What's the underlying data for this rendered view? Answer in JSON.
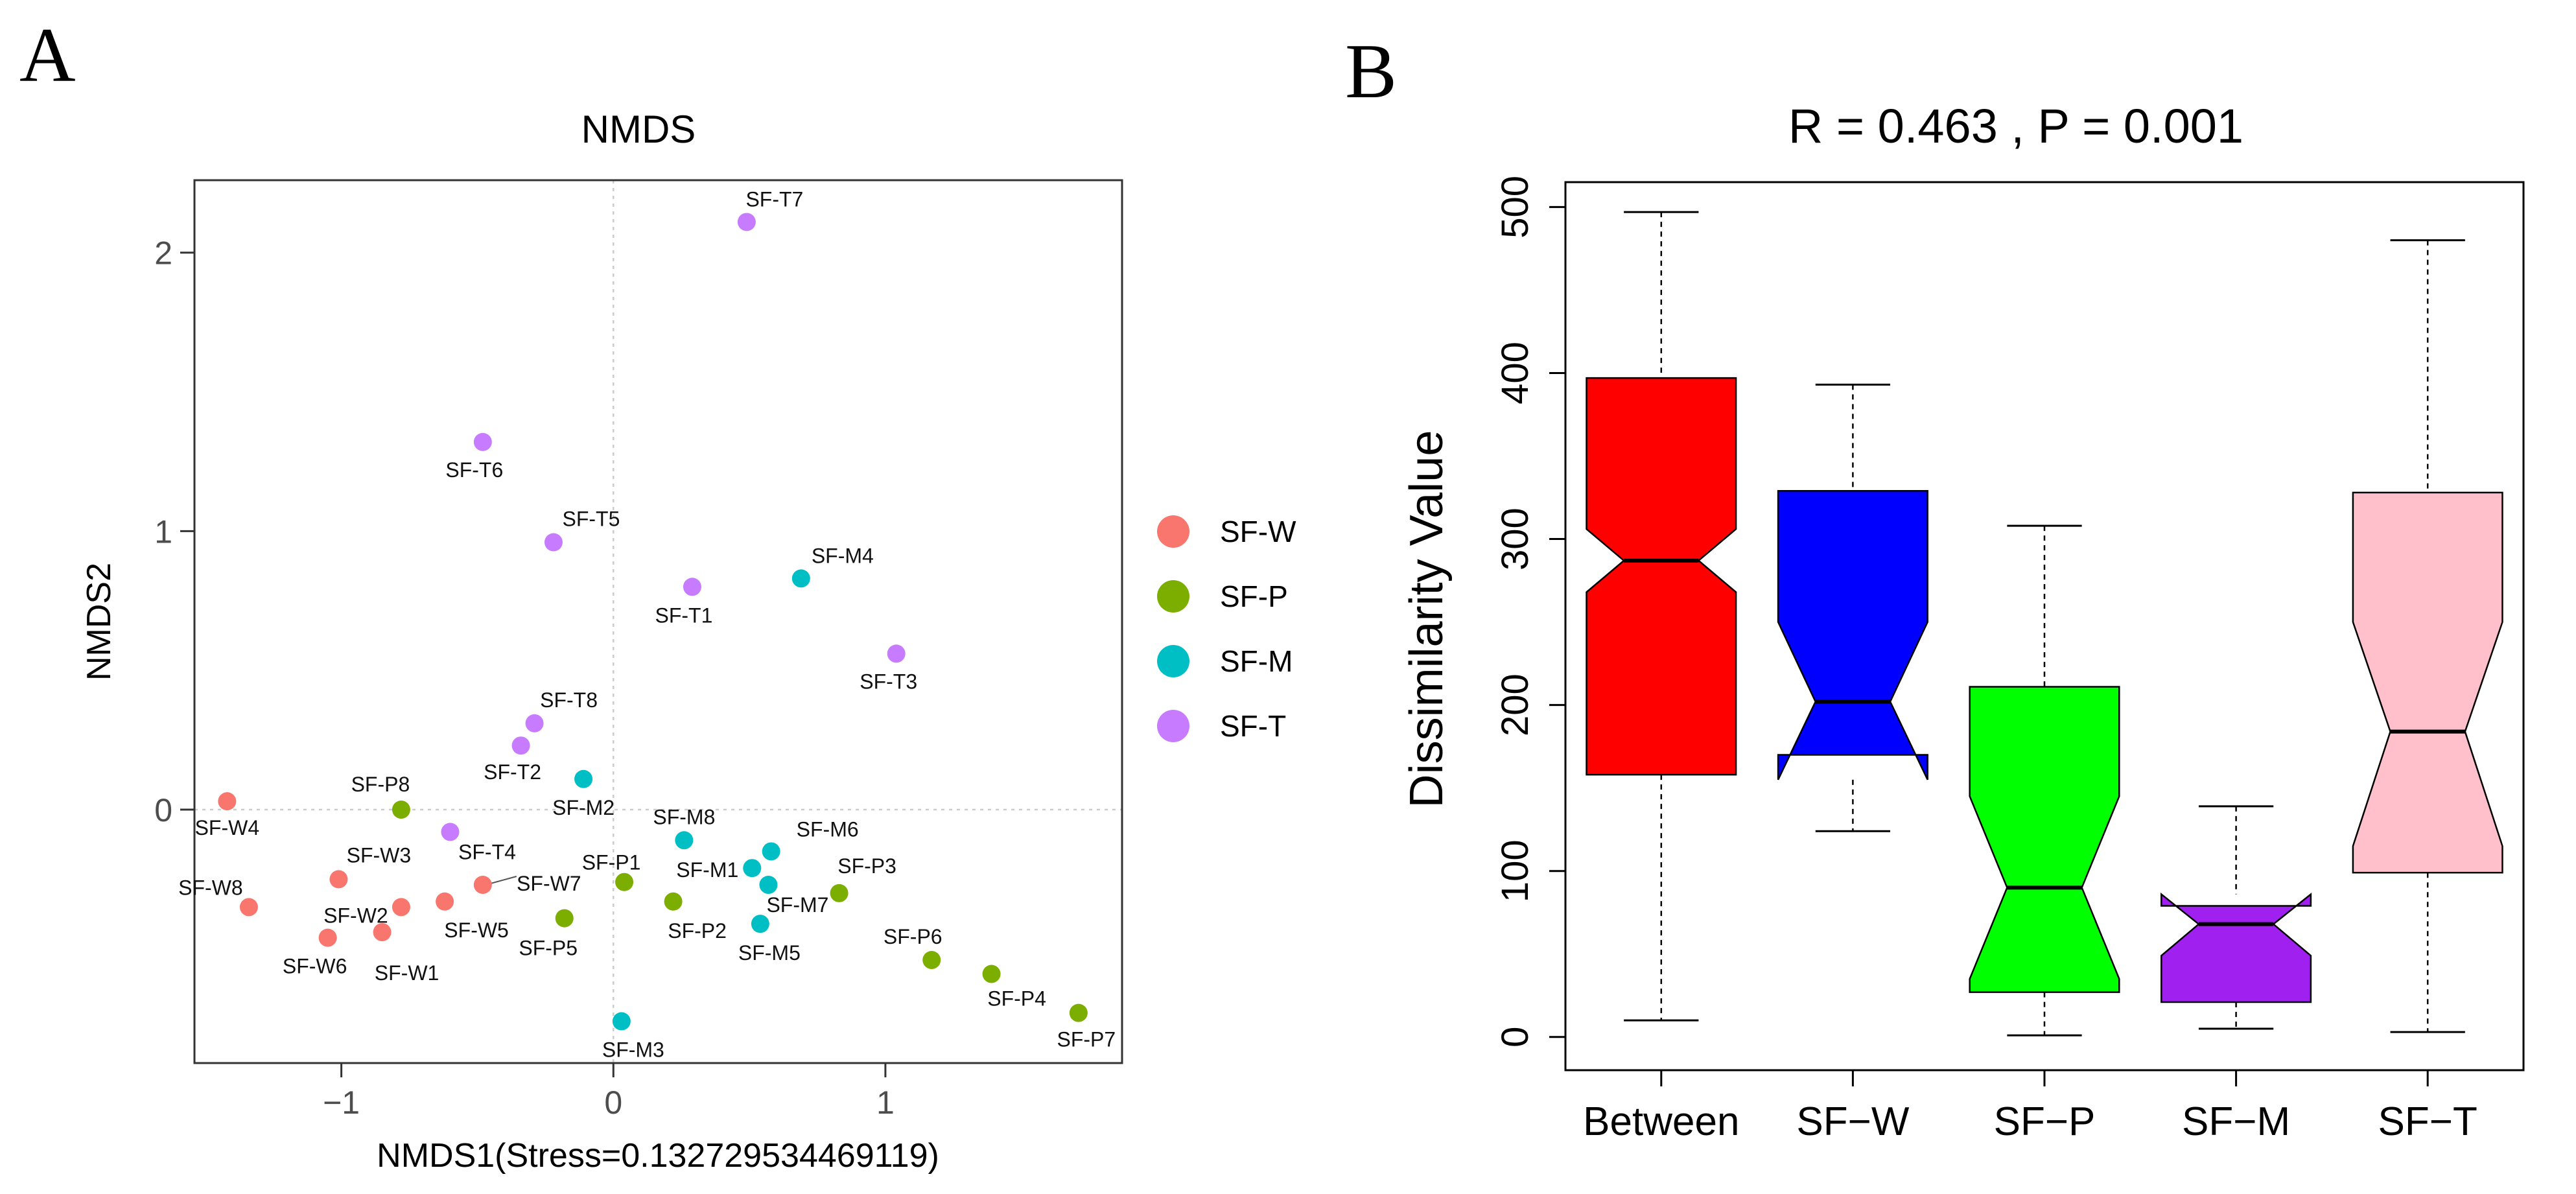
{
  "panels": {
    "a_label": "A",
    "b_label": "B"
  },
  "chart_data": [
    {
      "type": "scatter",
      "title": "NMDS",
      "xlabel": "NMDS1(Stress=0.132729534469119)",
      "ylabel": "NMDS2",
      "xlim": [
        -1.54,
        1.87
      ],
      "ylim": [
        -0.91,
        2.26
      ],
      "xticks": [
        -1,
        0,
        1
      ],
      "yticks": [
        0,
        1,
        2
      ],
      "xtick_labels": [
        "−1",
        "0",
        "1"
      ],
      "ytick_labels": [
        "0",
        "1",
        "2"
      ],
      "reference_lines": {
        "x": 0,
        "y": 0,
        "style": "dotted"
      },
      "legend": {
        "position": "right",
        "entries": [
          {
            "name": "SF-W",
            "color": "#F8766D"
          },
          {
            "name": "SF-P",
            "color": "#7CAE00"
          },
          {
            "name": "SF-M",
            "color": "#00BFC4"
          },
          {
            "name": "SF-T",
            "color": "#C77CFF"
          }
        ]
      },
      "groups": [
        {
          "name": "SF-W",
          "color": "#F8766D",
          "points": [
            {
              "label": "SF-W1",
              "x": -0.85,
              "y": -0.44
            },
            {
              "label": "SF-W2",
              "x": -0.78,
              "y": -0.35
            },
            {
              "label": "SF-W3",
              "x": -1.01,
              "y": -0.25
            },
            {
              "label": "SF-W4",
              "x": -1.42,
              "y": 0.03
            },
            {
              "label": "SF-W5",
              "x": -0.62,
              "y": -0.33
            },
            {
              "label": "SF-W6",
              "x": -1.05,
              "y": -0.46
            },
            {
              "label": "SF-W7",
              "x": -0.48,
              "y": -0.27
            },
            {
              "label": "SF-W8",
              "x": -1.34,
              "y": -0.35
            }
          ]
        },
        {
          "name": "SF-P",
          "color": "#7CAE00",
          "points": [
            {
              "label": "SF-P1",
              "x": 0.04,
              "y": -0.26
            },
            {
              "label": "SF-P2",
              "x": 0.22,
              "y": -0.33
            },
            {
              "label": "SF-P3",
              "x": 0.83,
              "y": -0.3
            },
            {
              "label": "SF-P4",
              "x": 1.39,
              "y": -0.59
            },
            {
              "label": "SF-P5",
              "x": -0.18,
              "y": -0.39
            },
            {
              "label": "SF-P6",
              "x": 1.17,
              "y": -0.54
            },
            {
              "label": "SF-P7",
              "x": 1.71,
              "y": -0.73
            },
            {
              "label": "SF-P8",
              "x": -0.78,
              "y": 0.0
            }
          ]
        },
        {
          "name": "SF-M",
          "color": "#00BFC4",
          "points": [
            {
              "label": "SF-M1",
              "x": 0.51,
              "y": -0.21
            },
            {
              "label": "SF-M2",
              "x": -0.11,
              "y": 0.11
            },
            {
              "label": "SF-M3",
              "x": 0.03,
              "y": -0.76
            },
            {
              "label": "SF-M4",
              "x": 0.69,
              "y": 0.83
            },
            {
              "label": "SF-M5",
              "x": 0.54,
              "y": -0.41
            },
            {
              "label": "SF-M6",
              "x": 0.58,
              "y": -0.15
            },
            {
              "label": "SF-M7",
              "x": 0.57,
              "y": -0.27
            },
            {
              "label": "SF-M8",
              "x": 0.26,
              "y": -0.11
            }
          ]
        },
        {
          "name": "SF-T",
          "color": "#C77CFF",
          "points": [
            {
              "label": "SF-T1",
              "x": 0.29,
              "y": 0.8
            },
            {
              "label": "SF-T2",
              "x": -0.34,
              "y": 0.23
            },
            {
              "label": "SF-T3",
              "x": 1.04,
              "y": 0.56
            },
            {
              "label": "SF-T4",
              "x": -0.6,
              "y": -0.08
            },
            {
              "label": "SF-T5",
              "x": -0.22,
              "y": 0.96
            },
            {
              "label": "SF-T6",
              "x": -0.48,
              "y": 1.32
            },
            {
              "label": "SF-T7",
              "x": 0.49,
              "y": 2.11
            },
            {
              "label": "SF-T8",
              "x": -0.29,
              "y": 0.31
            }
          ]
        }
      ]
    },
    {
      "type": "box",
      "title": "R =  0.463 ,  P =  0.001",
      "ylabel": "Dissimilarity Value",
      "ylim": [
        -20,
        515
      ],
      "yticks": [
        0,
        100,
        200,
        300,
        400,
        500
      ],
      "ytick_labels": [
        "0",
        "100",
        "200",
        "300",
        "400",
        "500"
      ],
      "categories": [
        "Between",
        "SF−W",
        "SF−P",
        "SF−M",
        "SF−T"
      ],
      "boxes": [
        {
          "name": "Between",
          "color": "#FF0000",
          "whisker_low": 10,
          "q1": 158,
          "median": 287,
          "q3": 397,
          "whisker_high": 497,
          "notch_low": 268,
          "notch_high": 306
        },
        {
          "name": "SF−W",
          "color": "#0000FF",
          "whisker_low": 124,
          "q1": 170,
          "median": 202,
          "q3": 329,
          "whisker_high": 393,
          "notch_low": 155,
          "notch_high": 250
        },
        {
          "name": "SF−P",
          "color": "#00FF00",
          "whisker_low": 1,
          "q1": 27,
          "median": 90,
          "q3": 211,
          "whisker_high": 308,
          "notch_low": 35,
          "notch_high": 145
        },
        {
          "name": "SF−M",
          "color": "#A020F0",
          "whisker_low": 5,
          "q1": 21,
          "median": 68,
          "q3": 79,
          "whisker_high": 139,
          "notch_low": 49,
          "notch_high": 86
        },
        {
          "name": "SF−T",
          "color": "#FFC0CB",
          "whisker_low": 3,
          "q1": 99,
          "median": 184,
          "q3": 328,
          "whisker_high": 480,
          "notch_low": 115,
          "notch_high": 250
        }
      ]
    }
  ]
}
